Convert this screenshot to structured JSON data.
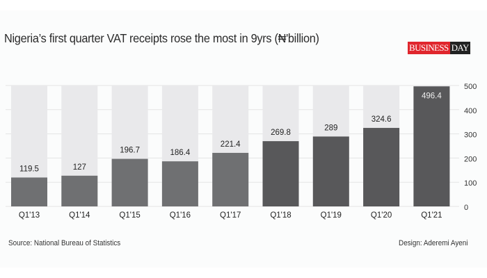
{
  "brand": {
    "logo_part1": "BUSINESS",
    "logo_part2": "DAY"
  },
  "footer": {
    "source": "Source: National Bureau of Statistics",
    "design": "Design: Aderemi Ayeni"
  },
  "colors": {
    "background_bar": "#e9e9eb",
    "bar_early": "#6f7072",
    "bar_recent": "#58585a",
    "logo_red": "#e0262d"
  },
  "chart_data": {
    "type": "bar",
    "title": "Nigeria’s first quarter VAT receipts rose the most in 9yrs (₦'billion)",
    "categories": [
      "Q1'13",
      "Q1'14",
      "Q1'15",
      "Q1'16",
      "Q1'17",
      "Q1'18",
      "Q1'19",
      "Q1'20",
      "Q1'21"
    ],
    "values": [
      119.5,
      127,
      196.7,
      186.4,
      221.4,
      269.8,
      289,
      324.6,
      496.4
    ],
    "data_labels": [
      "119.5",
      "127",
      "196.7",
      "186.4",
      "221.4",
      "269.8",
      "289",
      "324.6",
      "496.4"
    ],
    "xlabel": "",
    "ylabel": "",
    "ylim": [
      0,
      500
    ],
    "yticks": [
      0,
      100,
      200,
      300,
      400,
      500
    ],
    "yaxis_position": "right",
    "grid": true,
    "legend": "none"
  }
}
